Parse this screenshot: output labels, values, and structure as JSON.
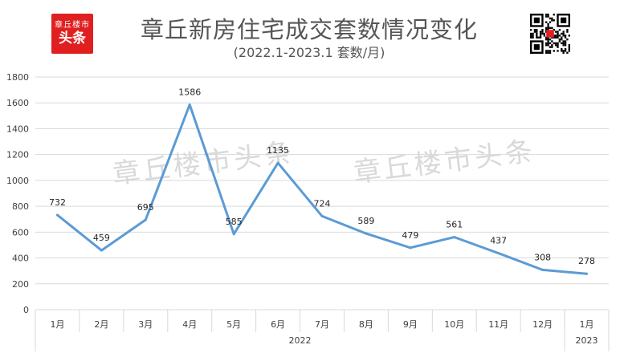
{
  "logo": {
    "line1": "章丘楼市",
    "line2": "头条"
  },
  "header": {
    "title": "章丘新房住宅成交套数情况变化",
    "subtitle": "(2022.1-2023.1 套数/月)"
  },
  "watermarks": [
    "章丘楼市头条",
    "章丘楼市头条"
  ],
  "chart_data": {
    "type": "line",
    "title": "章丘新房住宅成交套数情况变化",
    "subtitle": "(2022.1-2023.1 套数/月)",
    "categories": [
      "1月",
      "2月",
      "3月",
      "4月",
      "5月",
      "6月",
      "7月",
      "8月",
      "9月",
      "10月",
      "11月",
      "12月",
      "1月"
    ],
    "groups": [
      {
        "label": "2022",
        "count": 12
      },
      {
        "label": "2023",
        "count": 1
      }
    ],
    "series": [
      {
        "values": [
          732,
          459,
          695,
          1586,
          585,
          1135,
          724,
          589,
          479,
          561,
          437,
          308,
          278
        ]
      }
    ],
    "ylim": [
      0,
      1800
    ],
    "yticks": [
      0,
      200,
      400,
      600,
      800,
      1000,
      1200,
      1400,
      1600,
      1800
    ],
    "grid": true,
    "legend": "none",
    "colors": {
      "line": "#5b9bd5",
      "grid": "#d9d9d9",
      "text": "#404040",
      "watermark": "#d9d9d9"
    }
  }
}
